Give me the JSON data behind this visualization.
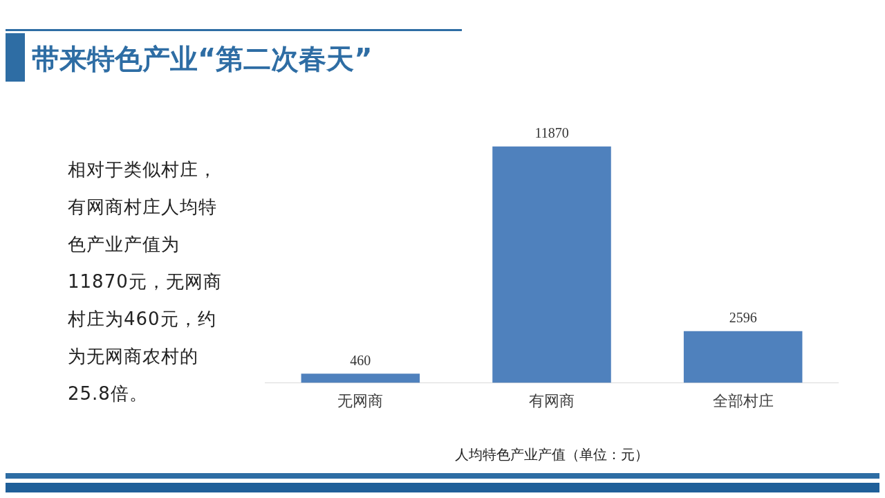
{
  "chart_data": {
    "type": "bar",
    "title": "带来特色产业“第二次春天”",
    "xlabel": "人均特色产业产值（单位：元）",
    "categories": [
      "无网商",
      "有网商",
      "全部村庄"
    ],
    "values": [
      460,
      11870,
      2596
    ],
    "color": "#4f81bd",
    "data_labels": true,
    "grid": false,
    "legend": false,
    "annotations": [
      "相对于类似村庄，有网商村庄人均特色产业产值为11870元，无网商村庄为460元，约为无网商农村的25.8倍。"
    ]
  }
}
